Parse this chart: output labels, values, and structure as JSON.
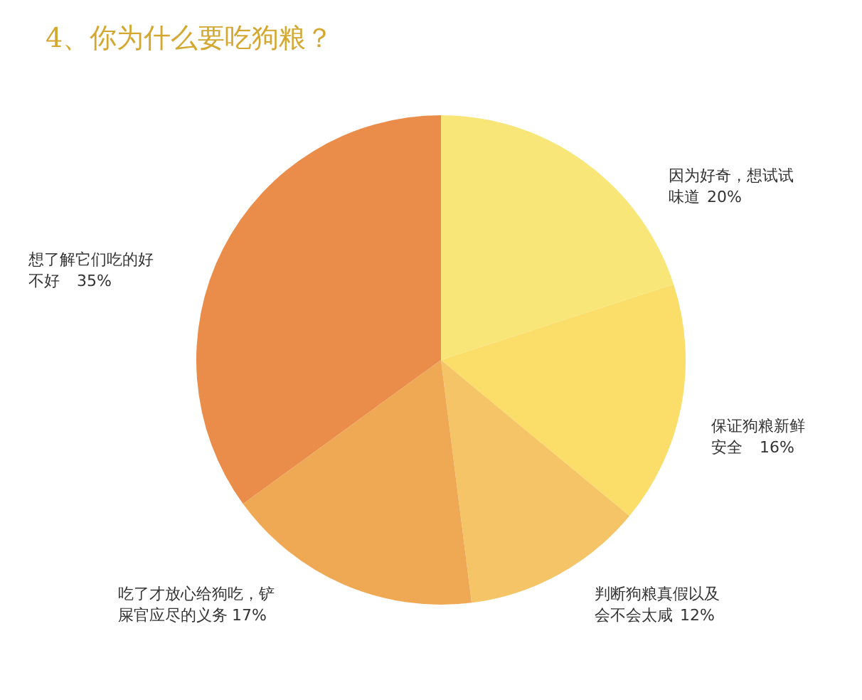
{
  "chart_data": {
    "type": "pie",
    "title": "4、你为什么要吃狗粮？",
    "categories": [
      "因为好奇，想试试味道",
      "保证狗粮新鲜安全",
      "判断狗粮真假以及会不会太咸",
      "吃了才放心给狗吃，铲屎官应尽的义务",
      "想了解它们吃的好不好"
    ],
    "values": [
      20,
      16,
      12,
      17,
      35
    ],
    "colors": [
      "#f9e679",
      "#fbdd6a",
      "#f5c466",
      "#efa955",
      "#ea8d4b"
    ],
    "value_labels": [
      "20%",
      "16%",
      "12%",
      "17%",
      "35%"
    ]
  }
}
